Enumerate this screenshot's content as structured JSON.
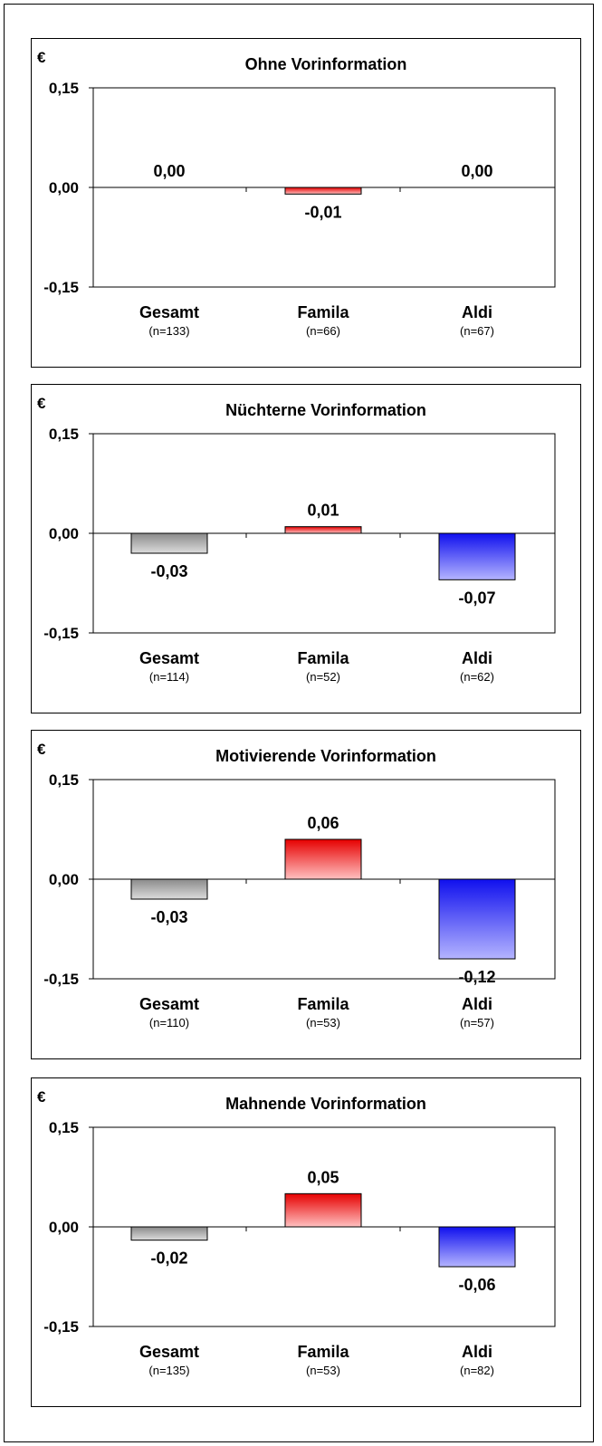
{
  "chart_data": [
    {
      "type": "bar",
      "title": "Ohne Vorinformation",
      "unit": "€",
      "ylim": [
        -0.15,
        0.15
      ],
      "yticks": [
        "0,15",
        "0,00",
        "-0,15"
      ],
      "categories": [
        "Gesamt",
        "Famila",
        "Aldi"
      ],
      "sample_sizes": [
        "(n=133)",
        "(n=66)",
        "(n=67)"
      ],
      "values": [
        0.0,
        -0.01,
        0.0
      ],
      "labels": [
        "0,00",
        "-0,01",
        "0,00"
      ]
    },
    {
      "type": "bar",
      "title": "Nüchterne Vorinformation",
      "unit": "€",
      "ylim": [
        -0.15,
        0.15
      ],
      "yticks": [
        "0,15",
        "0,00",
        "-0,15"
      ],
      "categories": [
        "Gesamt",
        "Famila",
        "Aldi"
      ],
      "sample_sizes": [
        "(n=114)",
        "(n=52)",
        "(n=62)"
      ],
      "values": [
        -0.03,
        0.01,
        -0.07
      ],
      "labels": [
        "-0,03",
        "0,01",
        "-0,07"
      ]
    },
    {
      "type": "bar",
      "title": "Motivierende Vorinformation",
      "unit": "€",
      "ylim": [
        -0.15,
        0.15
      ],
      "yticks": [
        "0,15",
        "0,00",
        "-0,15"
      ],
      "categories": [
        "Gesamt",
        "Famila",
        "Aldi"
      ],
      "sample_sizes": [
        "(n=110)",
        "(n=53)",
        "(n=57)"
      ],
      "values": [
        -0.03,
        0.06,
        -0.12
      ],
      "labels": [
        "-0,03",
        "0,06",
        "-0,12"
      ]
    },
    {
      "type": "bar",
      "title": "Mahnende Vorinformation",
      "unit": "€",
      "ylim": [
        -0.15,
        0.15
      ],
      "yticks": [
        "0,15",
        "0,00",
        "-0,15"
      ],
      "categories": [
        "Gesamt",
        "Famila",
        "Aldi"
      ],
      "sample_sizes": [
        "(n=135)",
        "(n=53)",
        "(n=82)"
      ],
      "values": [
        -0.02,
        0.05,
        -0.06
      ],
      "labels": [
        "-0,02",
        "0,05",
        "-0,06"
      ]
    }
  ],
  "colors": {
    "gesamt": [
      "#8a8a8a",
      "#dcdcdc"
    ],
    "famila": [
      "#e60000",
      "#ffc0c0"
    ],
    "aldi": [
      "#1010ee",
      "#b4b4ff"
    ]
  }
}
